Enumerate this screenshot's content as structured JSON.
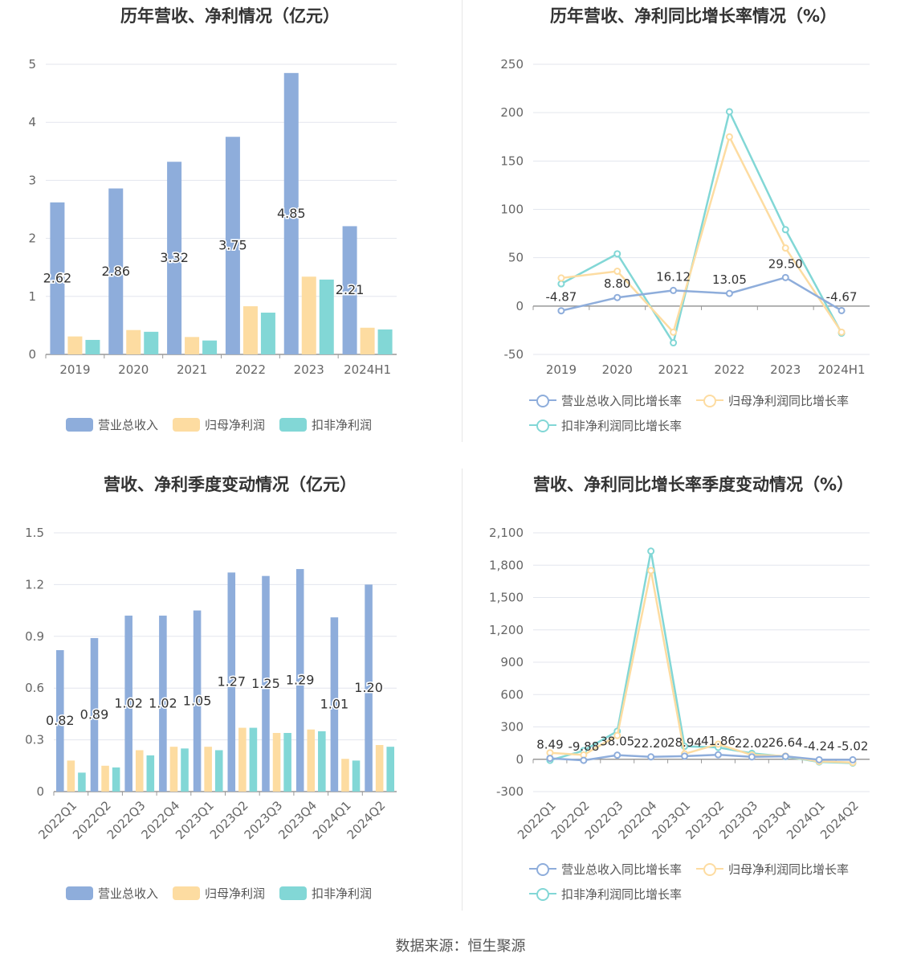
{
  "footer": "数据来源：恒生聚源",
  "colors": {
    "revenue": "#8eaddb",
    "net_profit": "#fddca1",
    "deducted_profit": "#82d7d6",
    "revenue_line": "#8eaddb",
    "net_profit_line": "#fddca1",
    "deducted_profit_line": "#82d7d6",
    "grid": "#e3e6ee",
    "axis_text": "#666666"
  },
  "chart_data": [
    {
      "id": "annual-amount",
      "type": "bar",
      "title": "历年营收、净利情况（亿元）",
      "categories": [
        "2019",
        "2020",
        "2021",
        "2022",
        "2023",
        "2024H1"
      ],
      "y_ticks": [
        "0",
        "1",
        "2",
        "3",
        "4",
        "5"
      ],
      "ylim": [
        0,
        5
      ],
      "grid": true,
      "legend_position": "bottom",
      "series": [
        {
          "name": "营业总收入",
          "color_key": "revenue",
          "values": [
            2.62,
            2.86,
            3.32,
            3.75,
            4.85,
            2.21
          ],
          "labels": [
            "2.62",
            "2.86",
            "3.32",
            "3.75",
            "4.85",
            "2.21"
          ]
        },
        {
          "name": "归母净利润",
          "color_key": "net_profit",
          "values": [
            0.31,
            0.42,
            0.3,
            0.83,
            1.34,
            0.46
          ]
        },
        {
          "name": "扣非净利润",
          "color_key": "deducted_profit",
          "values": [
            0.25,
            0.39,
            0.24,
            0.72,
            1.29,
            0.43
          ]
        }
      ]
    },
    {
      "id": "annual-growth",
      "type": "line",
      "title": "历年营收、净利同比增长率情况（%）",
      "categories": [
        "2019",
        "2020",
        "2021",
        "2022",
        "2023",
        "2024H1"
      ],
      "y_ticks": [
        "-50",
        "0",
        "50",
        "100",
        "150",
        "200",
        "250"
      ],
      "ylim": [
        -50,
        250
      ],
      "grid": true,
      "legend_position": "bottom",
      "series": [
        {
          "name": "营业总收入同比增长率",
          "color_key": "revenue_line",
          "values": [
            -4.87,
            8.8,
            16.12,
            13.05,
            29.5,
            -4.67
          ],
          "labels": [
            "-4.87",
            "8.80",
            "16.12",
            "13.05",
            "29.50",
            "-4.67"
          ]
        },
        {
          "name": "归母净利润同比增长率",
          "color_key": "net_profit_line",
          "values": [
            29,
            36,
            -27,
            175,
            60,
            -27
          ]
        },
        {
          "name": "扣非净利润同比增长率",
          "color_key": "deducted_profit_line",
          "values": [
            23,
            54,
            -38,
            201,
            79,
            -28
          ]
        }
      ]
    },
    {
      "id": "quarterly-amount",
      "type": "bar",
      "title": "营收、净利季度变动情况（亿元）",
      "categories": [
        "2022Q1",
        "2022Q2",
        "2022Q3",
        "2022Q4",
        "2023Q1",
        "2023Q2",
        "2023Q3",
        "2023Q4",
        "2024Q1",
        "2024Q2"
      ],
      "y_ticks": [
        "0",
        "0.3",
        "0.6",
        "0.9",
        "1.2",
        "1.5"
      ],
      "ylim": [
        0,
        1.5
      ],
      "grid": true,
      "legend_position": "bottom",
      "series": [
        {
          "name": "营业总收入",
          "color_key": "revenue",
          "values": [
            0.82,
            0.89,
            1.02,
            1.02,
            1.05,
            1.27,
            1.25,
            1.29,
            1.01,
            1.2
          ],
          "labels": [
            "0.82",
            "0.89",
            "1.02",
            "1.02",
            "1.05",
            "1.27",
            "1.25",
            "1.29",
            "1.01",
            "1.20"
          ]
        },
        {
          "name": "归母净利润",
          "color_key": "net_profit",
          "values": [
            0.18,
            0.15,
            0.24,
            0.26,
            0.26,
            0.37,
            0.34,
            0.36,
            0.19,
            0.27
          ]
        },
        {
          "name": "扣非净利润",
          "color_key": "deducted_profit",
          "values": [
            0.11,
            0.14,
            0.21,
            0.25,
            0.24,
            0.37,
            0.34,
            0.35,
            0.18,
            0.26
          ]
        }
      ]
    },
    {
      "id": "quarterly-growth",
      "type": "line",
      "title": "营收、净利同比增长率季度变动情况（%）",
      "categories": [
        "2022Q1",
        "2022Q2",
        "2022Q3",
        "2022Q4",
        "2023Q1",
        "2023Q2",
        "2023Q3",
        "2023Q4",
        "2024Q1",
        "2024Q2"
      ],
      "y_ticks": [
        "-300",
        "0",
        "300",
        "600",
        "900",
        "1,200",
        "1,500",
        "1,800",
        "2,100"
      ],
      "ylim": [
        -300,
        2100
      ],
      "grid": true,
      "legend_position": "bottom",
      "series": [
        {
          "name": "营业总收入同比增长率",
          "color_key": "revenue_line",
          "values": [
            8.49,
            -9.88,
            38.05,
            22.2,
            28.94,
            41.86,
            22.02,
            26.64,
            -4.24,
            -5.02
          ],
          "labels": [
            "8.49",
            "-9.88",
            "38.05",
            "22.20",
            "28.94",
            "41.86",
            "22.02",
            "26.64",
            "-4.24",
            "-5.02"
          ]
        },
        {
          "name": "归母净利润同比增长率",
          "color_key": "net_profit_line",
          "values": [
            60,
            40,
            220,
            1750,
            50,
            140,
            40,
            30,
            -20,
            -30
          ]
        },
        {
          "name": "扣非净利润同比增长率",
          "color_key": "deducted_profit_line",
          "values": [
            -10,
            80,
            260,
            1930,
            120,
            110,
            55,
            25,
            -25,
            -35
          ]
        }
      ]
    }
  ]
}
